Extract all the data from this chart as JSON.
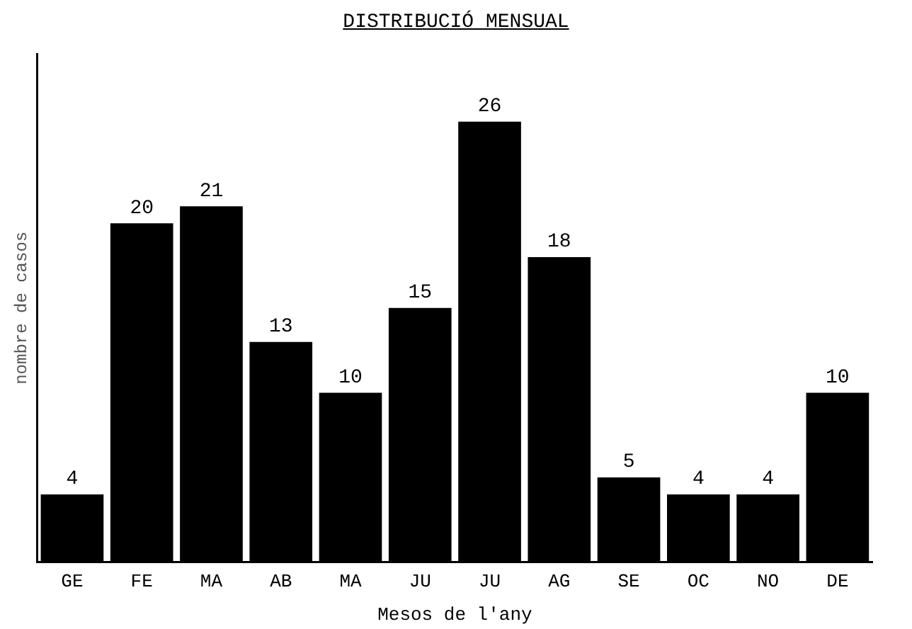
{
  "chart_data": {
    "type": "bar",
    "title": "DISTRIBUCIÓ MENSUAL",
    "xlabel": "Mesos de l'any",
    "ylabel": "nombre de casos",
    "categories": [
      "GE",
      "FE",
      "MA",
      "AB",
      "MA",
      "JU",
      "JU",
      "AG",
      "SE",
      "OC",
      "NO",
      "DE"
    ],
    "values": [
      4,
      20,
      21,
      13,
      10,
      15,
      26,
      18,
      5,
      4,
      4,
      10
    ],
    "color": "#000000",
    "data_labels": true,
    "grid": false,
    "legend": false
  }
}
